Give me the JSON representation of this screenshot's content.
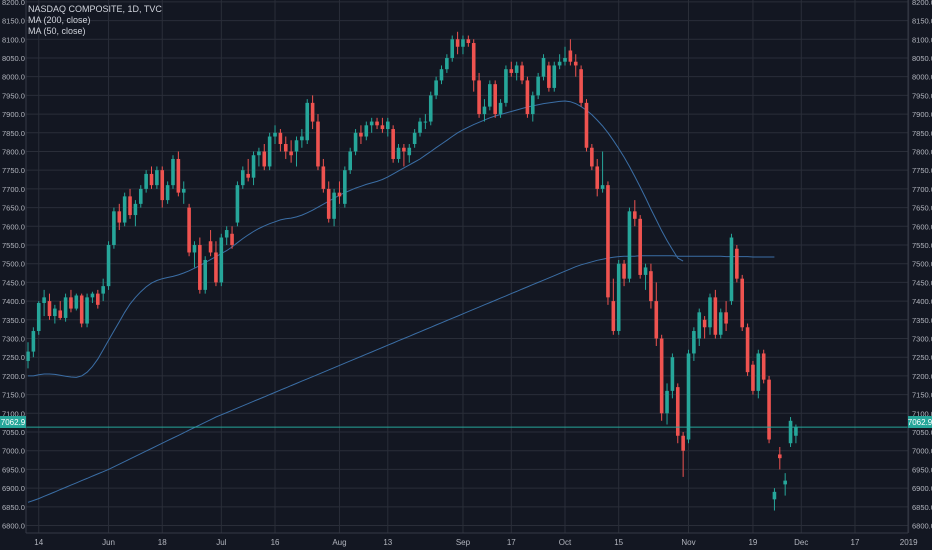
{
  "legend": {
    "line1": "NASDAQ COMPOSITE, 1D, TVC",
    "line2": "MA (200, close)",
    "line3": "MA (50, close)"
  },
  "last_price_label": "7062.9",
  "colors": {
    "background": "#131722",
    "grid": "#2a2e39",
    "up": "#26a69a",
    "down": "#ef5350",
    "ma": "#3b6ea5",
    "price_line": "#26a69a",
    "axis_text": "#b2b5be"
  },
  "chart_data": {
    "type": "candlestick",
    "title": "NASDAQ COMPOSITE, 1D, TVC",
    "ylim": [
      6780,
      8205
    ],
    "yticks": [
      6800,
      6850,
      6900,
      6950,
      7000,
      7050,
      7100,
      7150,
      7200,
      7250,
      7300,
      7350,
      7400,
      7450,
      7500,
      7550,
      7600,
      7650,
      7700,
      7750,
      7800,
      7850,
      7900,
      7950,
      8000,
      8050,
      8100,
      8150,
      8200
    ],
    "x_ticks": [
      {
        "label": "14",
        "index": 2
      },
      {
        "label": "Jun",
        "index": 15
      },
      {
        "label": "18",
        "index": 25
      },
      {
        "label": "Jul",
        "index": 36
      },
      {
        "label": "16",
        "index": 46
      },
      {
        "label": "Aug",
        "index": 58
      },
      {
        "label": "13",
        "index": 67
      },
      {
        "label": "Sep",
        "index": 81
      },
      {
        "label": "17",
        "index": 90
      },
      {
        "label": "Oct",
        "index": 100
      },
      {
        "label": "15",
        "index": 110
      },
      {
        "label": "Nov",
        "index": 123
      },
      {
        "label": "19",
        "index": 135
      },
      {
        "label": "Dec",
        "index": 144
      },
      {
        "label": "17",
        "index": 154
      },
      {
        "label": "2019",
        "index": 164
      }
    ],
    "last_price": 7062.9,
    "candles": [
      {
        "o": 7240,
        "h": 7290,
        "l": 7220,
        "c": 7265
      },
      {
        "o": 7265,
        "h": 7330,
        "l": 7250,
        "c": 7320
      },
      {
        "o": 7320,
        "h": 7400,
        "l": 7310,
        "c": 7395
      },
      {
        "o": 7395,
        "h": 7430,
        "l": 7360,
        "c": 7410
      },
      {
        "o": 7400,
        "h": 7420,
        "l": 7350,
        "c": 7360
      },
      {
        "o": 7360,
        "h": 7390,
        "l": 7340,
        "c": 7380
      },
      {
        "o": 7375,
        "h": 7400,
        "l": 7350,
        "c": 7355
      },
      {
        "o": 7355,
        "h": 7420,
        "l": 7345,
        "c": 7410
      },
      {
        "o": 7410,
        "h": 7430,
        "l": 7370,
        "c": 7380
      },
      {
        "o": 7380,
        "h": 7420,
        "l": 7375,
        "c": 7415
      },
      {
        "o": 7415,
        "h": 7420,
        "l": 7330,
        "c": 7340
      },
      {
        "o": 7340,
        "h": 7420,
        "l": 7330,
        "c": 7410
      },
      {
        "o": 7410,
        "h": 7425,
        "l": 7395,
        "c": 7420
      },
      {
        "o": 7420,
        "h": 7430,
        "l": 7380,
        "c": 7390
      },
      {
        "o": 7420,
        "h": 7460,
        "l": 7400,
        "c": 7440
      },
      {
        "o": 7440,
        "h": 7560,
        "l": 7430,
        "c": 7550
      },
      {
        "o": 7550,
        "h": 7650,
        "l": 7540,
        "c": 7640
      },
      {
        "o": 7640,
        "h": 7660,
        "l": 7590,
        "c": 7610
      },
      {
        "o": 7610,
        "h": 7690,
        "l": 7600,
        "c": 7680
      },
      {
        "o": 7680,
        "h": 7700,
        "l": 7620,
        "c": 7630
      },
      {
        "o": 7630,
        "h": 7670,
        "l": 7600,
        "c": 7660
      },
      {
        "o": 7660,
        "h": 7710,
        "l": 7650,
        "c": 7700
      },
      {
        "o": 7700,
        "h": 7750,
        "l": 7690,
        "c": 7740
      },
      {
        "o": 7740,
        "h": 7760,
        "l": 7700,
        "c": 7710
      },
      {
        "o": 7710,
        "h": 7760,
        "l": 7700,
        "c": 7750
      },
      {
        "o": 7750,
        "h": 7760,
        "l": 7650,
        "c": 7670
      },
      {
        "o": 7670,
        "h": 7720,
        "l": 7660,
        "c": 7710
      },
      {
        "o": 7710,
        "h": 7790,
        "l": 7700,
        "c": 7780
      },
      {
        "o": 7780,
        "h": 7800,
        "l": 7680,
        "c": 7690
      },
      {
        "o": 7690,
        "h": 7720,
        "l": 7660,
        "c": 7700
      },
      {
        "o": 7650,
        "h": 7660,
        "l": 7520,
        "c": 7530
      },
      {
        "o": 7530,
        "h": 7560,
        "l": 7490,
        "c": 7550
      },
      {
        "o": 7550,
        "h": 7570,
        "l": 7420,
        "c": 7430
      },
      {
        "o": 7430,
        "h": 7520,
        "l": 7420,
        "c": 7510
      },
      {
        "o": 7560,
        "h": 7590,
        "l": 7520,
        "c": 7530
      },
      {
        "o": 7530,
        "h": 7560,
        "l": 7440,
        "c": 7450
      },
      {
        "o": 7450,
        "h": 7580,
        "l": 7440,
        "c": 7570
      },
      {
        "o": 7570,
        "h": 7600,
        "l": 7550,
        "c": 7590
      },
      {
        "o": 7580,
        "h": 7600,
        "l": 7540,
        "c": 7550
      },
      {
        "o": 7610,
        "h": 7720,
        "l": 7600,
        "c": 7710
      },
      {
        "o": 7710,
        "h": 7760,
        "l": 7700,
        "c": 7750
      },
      {
        "o": 7740,
        "h": 7780,
        "l": 7720,
        "c": 7730
      },
      {
        "o": 7730,
        "h": 7800,
        "l": 7710,
        "c": 7790
      },
      {
        "o": 7790,
        "h": 7810,
        "l": 7760,
        "c": 7800
      },
      {
        "o": 7800,
        "h": 7820,
        "l": 7750,
        "c": 7760
      },
      {
        "o": 7760,
        "h": 7850,
        "l": 7750,
        "c": 7840
      },
      {
        "o": 7840,
        "h": 7870,
        "l": 7820,
        "c": 7850
      },
      {
        "o": 7850,
        "h": 7860,
        "l": 7800,
        "c": 7820
      },
      {
        "o": 7820,
        "h": 7840,
        "l": 7780,
        "c": 7800
      },
      {
        "o": 7800,
        "h": 7830,
        "l": 7770,
        "c": 7790
      },
      {
        "o": 7800,
        "h": 7840,
        "l": 7760,
        "c": 7830
      },
      {
        "o": 7830,
        "h": 7860,
        "l": 7810,
        "c": 7840
      },
      {
        "o": 7830,
        "h": 7940,
        "l": 7820,
        "c": 7930
      },
      {
        "o": 7930,
        "h": 7950,
        "l": 7860,
        "c": 7880
      },
      {
        "o": 7880,
        "h": 7900,
        "l": 7750,
        "c": 7760
      },
      {
        "o": 7760,
        "h": 7780,
        "l": 7690,
        "c": 7700
      },
      {
        "o": 7700,
        "h": 7720,
        "l": 7610,
        "c": 7620
      },
      {
        "o": 7620,
        "h": 7700,
        "l": 7600,
        "c": 7690
      },
      {
        "o": 7690,
        "h": 7720,
        "l": 7660,
        "c": 7680
      },
      {
        "o": 7660,
        "h": 7760,
        "l": 7650,
        "c": 7750
      },
      {
        "o": 7750,
        "h": 7810,
        "l": 7740,
        "c": 7800
      },
      {
        "o": 7800,
        "h": 7860,
        "l": 7790,
        "c": 7850
      },
      {
        "o": 7850,
        "h": 7870,
        "l": 7820,
        "c": 7840
      },
      {
        "o": 7840,
        "h": 7880,
        "l": 7830,
        "c": 7870
      },
      {
        "o": 7870,
        "h": 7890,
        "l": 7850,
        "c": 7880
      },
      {
        "o": 7880,
        "h": 7890,
        "l": 7860,
        "c": 7870
      },
      {
        "o": 7870,
        "h": 7890,
        "l": 7850,
        "c": 7860
      },
      {
        "o": 7860,
        "h": 7890,
        "l": 7840,
        "c": 7880
      },
      {
        "o": 7860,
        "h": 7870,
        "l": 7770,
        "c": 7780
      },
      {
        "o": 7780,
        "h": 7820,
        "l": 7770,
        "c": 7810
      },
      {
        "o": 7810,
        "h": 7820,
        "l": 7760,
        "c": 7800
      },
      {
        "o": 7790,
        "h": 7820,
        "l": 7770,
        "c": 7810
      },
      {
        "o": 7820,
        "h": 7860,
        "l": 7810,
        "c": 7850
      },
      {
        "o": 7850,
        "h": 7890,
        "l": 7840,
        "c": 7880
      },
      {
        "o": 7880,
        "h": 7900,
        "l": 7860,
        "c": 7880
      },
      {
        "o": 7880,
        "h": 7960,
        "l": 7870,
        "c": 7950
      },
      {
        "o": 7950,
        "h": 8000,
        "l": 7940,
        "c": 7990
      },
      {
        "o": 7990,
        "h": 8030,
        "l": 7980,
        "c": 8020
      },
      {
        "o": 8020,
        "h": 8060,
        "l": 8010,
        "c": 8050
      },
      {
        "o": 8050,
        "h": 8110,
        "l": 8040,
        "c": 8100
      },
      {
        "o": 8100,
        "h": 8120,
        "l": 8060,
        "c": 8080
      },
      {
        "o": 8080,
        "h": 8110,
        "l": 8060,
        "c": 8100
      },
      {
        "o": 8100,
        "h": 8110,
        "l": 8080,
        "c": 8090
      },
      {
        "o": 8090,
        "h": 8100,
        "l": 7960,
        "c": 7990
      },
      {
        "o": 7990,
        "h": 8010,
        "l": 7890,
        "c": 7900
      },
      {
        "o": 7900,
        "h": 7940,
        "l": 7880,
        "c": 7920
      },
      {
        "o": 7920,
        "h": 7990,
        "l": 7910,
        "c": 7980
      },
      {
        "o": 7980,
        "h": 7990,
        "l": 7890,
        "c": 7900
      },
      {
        "o": 7900,
        "h": 7940,
        "l": 7890,
        "c": 7930
      },
      {
        "o": 7930,
        "h": 8030,
        "l": 7920,
        "c": 8020
      },
      {
        "o": 8020,
        "h": 8040,
        "l": 8000,
        "c": 8010
      },
      {
        "o": 8010,
        "h": 8040,
        "l": 7990,
        "c": 8030
      },
      {
        "o": 8030,
        "h": 8040,
        "l": 7980,
        "c": 7990
      },
      {
        "o": 7990,
        "h": 8000,
        "l": 7890,
        "c": 7900
      },
      {
        "o": 7900,
        "h": 7960,
        "l": 7880,
        "c": 7950
      },
      {
        "o": 7950,
        "h": 8010,
        "l": 7940,
        "c": 8000
      },
      {
        "o": 8000,
        "h": 8060,
        "l": 7990,
        "c": 8050
      },
      {
        "o": 8030,
        "h": 8040,
        "l": 7960,
        "c": 7970
      },
      {
        "o": 7970,
        "h": 8040,
        "l": 7960,
        "c": 8030
      },
      {
        "o": 8030,
        "h": 8060,
        "l": 8020,
        "c": 8040
      },
      {
        "o": 8040,
        "h": 8080,
        "l": 8030,
        "c": 8050
      },
      {
        "o": 8070,
        "h": 8100,
        "l": 8030,
        "c": 8040
      },
      {
        "o": 8040,
        "h": 8060,
        "l": 8000,
        "c": 8030
      },
      {
        "o": 8020,
        "h": 8030,
        "l": 7920,
        "c": 7930
      },
      {
        "o": 7930,
        "h": 7940,
        "l": 7800,
        "c": 7810
      },
      {
        "o": 7810,
        "h": 7820,
        "l": 7750,
        "c": 7760
      },
      {
        "o": 7760,
        "h": 7780,
        "l": 7680,
        "c": 7700
      },
      {
        "o": 7700,
        "h": 7800,
        "l": 7690,
        "c": 7710
      },
      {
        "o": 7710,
        "h": 7720,
        "l": 7390,
        "c": 7410
      },
      {
        "o": 7400,
        "h": 7460,
        "l": 7310,
        "c": 7320
      },
      {
        "o": 7320,
        "h": 7510,
        "l": 7310,
        "c": 7500
      },
      {
        "o": 7500,
        "h": 7510,
        "l": 7440,
        "c": 7460
      },
      {
        "o": 7460,
        "h": 7650,
        "l": 7450,
        "c": 7640
      },
      {
        "o": 7640,
        "h": 7670,
        "l": 7600,
        "c": 7620
      },
      {
        "o": 7620,
        "h": 7630,
        "l": 7460,
        "c": 7470
      },
      {
        "o": 7470,
        "h": 7500,
        "l": 7430,
        "c": 7490
      },
      {
        "o": 7480,
        "h": 7500,
        "l": 7380,
        "c": 7400
      },
      {
        "o": 7400,
        "h": 7450,
        "l": 7280,
        "c": 7300
      },
      {
        "o": 7300,
        "h": 7310,
        "l": 7080,
        "c": 7100
      },
      {
        "o": 7100,
        "h": 7180,
        "l": 7070,
        "c": 7160
      },
      {
        "o": 7160,
        "h": 7260,
        "l": 7140,
        "c": 7250
      },
      {
        "o": 7170,
        "h": 7180,
        "l": 7020,
        "c": 7040
      },
      {
        "o": 7040,
        "h": 7050,
        "l": 6930,
        "c": 7000
      },
      {
        "o": 7030,
        "h": 7270,
        "l": 7020,
        "c": 7260
      },
      {
        "o": 7260,
        "h": 7330,
        "l": 7240,
        "c": 7320
      },
      {
        "o": 7300,
        "h": 7380,
        "l": 7280,
        "c": 7370
      },
      {
        "o": 7350,
        "h": 7360,
        "l": 7300,
        "c": 7330
      },
      {
        "o": 7330,
        "h": 7420,
        "l": 7310,
        "c": 7410
      },
      {
        "o": 7410,
        "h": 7430,
        "l": 7300,
        "c": 7310
      },
      {
        "o": 7310,
        "h": 7380,
        "l": 7300,
        "c": 7370
      },
      {
        "o": 7370,
        "h": 7400,
        "l": 7320,
        "c": 7340
      },
      {
        "o": 7400,
        "h": 7580,
        "l": 7390,
        "c": 7570
      },
      {
        "o": 7540,
        "h": 7550,
        "l": 7450,
        "c": 7460
      },
      {
        "o": 7460,
        "h": 7470,
        "l": 7320,
        "c": 7330
      },
      {
        "o": 7330,
        "h": 7340,
        "l": 7200,
        "c": 7210
      },
      {
        "o": 7230,
        "h": 7240,
        "l": 7150,
        "c": 7160
      },
      {
        "o": 7160,
        "h": 7270,
        "l": 7140,
        "c": 7260
      },
      {
        "o": 7260,
        "h": 7270,
        "l": 7180,
        "c": 7190
      },
      {
        "o": 7190,
        "h": 7200,
        "l": 7020,
        "c": 7030
      },
      {
        "o": 6870,
        "h": 6900,
        "l": 6840,
        "c": 6890
      },
      {
        "o": 6990,
        "h": 7010,
        "l": 6950,
        "c": 6980
      },
      {
        "o": 6910,
        "h": 6940,
        "l": 6880,
        "c": 6920
      },
      {
        "o": 7020,
        "h": 7090,
        "l": 7010,
        "c": 7080
      },
      {
        "o": 7040,
        "h": 7070,
        "l": 7020,
        "c": 7063
      }
    ],
    "series": [
      {
        "name": "MA (200, close)",
        "values": [
          6862,
          6867,
          6872,
          6878,
          6884,
          6890,
          6896,
          6902,
          6908,
          6914,
          6920,
          6926,
          6932,
          6938,
          6944,
          6950,
          6957,
          6964,
          6971,
          6978,
          6985,
          6992,
          6999,
          7006,
          7013,
          7020,
          7027,
          7034,
          7041,
          7048,
          7055,
          7062,
          7069,
          7076,
          7083,
          7090,
          7096,
          7102,
          7108,
          7114,
          7120,
          7126,
          7132,
          7138,
          7144,
          7150,
          7156,
          7162,
          7168,
          7174,
          7180,
          7186,
          7192,
          7198,
          7204,
          7210,
          7216,
          7222,
          7228,
          7234,
          7240,
          7246,
          7252,
          7258,
          7264,
          7270,
          7276,
          7282,
          7288,
          7294,
          7300,
          7306,
          7312,
          7318,
          7324,
          7330,
          7336,
          7342,
          7348,
          7354,
          7360,
          7366,
          7372,
          7378,
          7384,
          7390,
          7396,
          7402,
          7408,
          7414,
          7420,
          7426,
          7432,
          7438,
          7444,
          7450,
          7456,
          7462,
          7468,
          7474,
          7480,
          7486,
          7492,
          7497,
          7501,
          7505,
          7509,
          7512,
          7515,
          7517,
          7519,
          7520,
          7520,
          7520,
          7521,
          7521,
          7521,
          7521,
          7521,
          7521,
          7521,
          7520,
          7520,
          7520,
          7520,
          7520,
          7520,
          7520,
          7520,
          7520,
          7519,
          7519,
          7519,
          7519,
          7519,
          7518,
          7518,
          7518,
          7518,
          7518
        ]
      },
      {
        "name": "MA (50, close)",
        "values": [
          7200,
          7200,
          7203,
          7205,
          7205,
          7204,
          7202,
          7199,
          7197,
          7196,
          7200,
          7210,
          7225,
          7245,
          7270,
          7295,
          7320,
          7345,
          7370,
          7392,
          7410,
          7425,
          7438,
          7448,
          7455,
          7460,
          7463,
          7466,
          7470,
          7475,
          7481,
          7488,
          7495,
          7503,
          7511,
          7519,
          7527,
          7535,
          7545,
          7556,
          7567,
          7577,
          7586,
          7594,
          7601,
          7607,
          7612,
          7617,
          7620,
          7622,
          7625,
          7630,
          7636,
          7643,
          7651,
          7659,
          7667,
          7675,
          7683,
          7690,
          7696,
          7702,
          7707,
          7712,
          7716,
          7720,
          7725,
          7732,
          7740,
          7748,
          7756,
          7764,
          7772,
          7780,
          7790,
          7800,
          7810,
          7820,
          7830,
          7840,
          7850,
          7858,
          7865,
          7872,
          7878,
          7884,
          7890,
          7895,
          7899,
          7903,
          7907,
          7911,
          7915,
          7919,
          7922,
          7925,
          7928,
          7930,
          7932,
          7934,
          7935,
          7933,
          7928,
          7920,
          7910,
          7898,
          7884,
          7868,
          7850,
          7830,
          7808,
          7785,
          7760,
          7733,
          7705,
          7676,
          7646,
          7617,
          7588,
          7562,
          7538,
          7515,
          7507
        ]
      }
    ]
  }
}
